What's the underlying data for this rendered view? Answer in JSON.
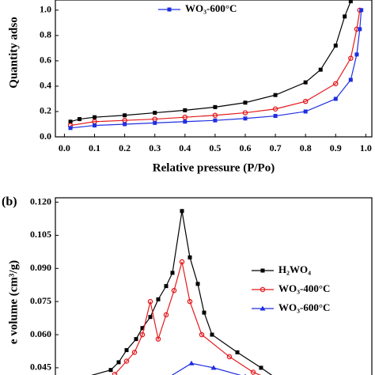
{
  "chart_data": [
    {
      "type": "line",
      "ylabel": "Quantity adso",
      "xlabel": "Relative pressure (P/Po)",
      "xlim": [
        -0.03,
        1.02
      ],
      "ylim": [
        0,
        1.08
      ],
      "xticks": [
        {
          "value": 0,
          "label": "0.0"
        },
        0.1,
        0.2,
        0.3,
        0.4,
        0.5,
        0.6,
        0.7,
        0.8,
        0.9,
        {
          "value": 1,
          "label": "1.0"
        }
      ],
      "yticks": [
        {
          "value": 0,
          "label": "0.0"
        },
        0.2,
        0.4,
        0.6,
        0.8,
        {
          "value": 1,
          "label": "1.0"
        }
      ],
      "series": [
        {
          "color": "#000000",
          "marker": "square",
          "x": [
            0.02,
            0.05,
            0.1,
            0.2,
            0.3,
            0.4,
            0.5,
            0.6,
            0.7,
            0.8,
            0.85,
            0.9,
            0.93,
            0.95
          ],
          "values": [
            0.12,
            0.14,
            0.155,
            0.17,
            0.19,
            0.21,
            0.235,
            0.27,
            0.33,
            0.43,
            0.53,
            0.72,
            0.95,
            1.07
          ]
        },
        {
          "color": "#e41a1c",
          "marker": "circle",
          "x": [
            0.02,
            0.1,
            0.2,
            0.3,
            0.4,
            0.5,
            0.6,
            0.7,
            0.8,
            0.9,
            0.95,
            0.97,
            0.98
          ],
          "values": [
            0.09,
            0.12,
            0.13,
            0.14,
            0.155,
            0.17,
            0.19,
            0.22,
            0.28,
            0.42,
            0.62,
            0.85,
            1.0
          ]
        },
        {
          "name": "WO₃-600°C",
          "color": "#1f2ee0",
          "marker": "square",
          "x": [
            0.02,
            0.1,
            0.2,
            0.3,
            0.4,
            0.5,
            0.6,
            0.7,
            0.8,
            0.9,
            0.95,
            0.97,
            0.98,
            0.985
          ],
          "values": [
            0.07,
            0.09,
            0.1,
            0.11,
            0.12,
            0.13,
            0.145,
            0.165,
            0.2,
            0.3,
            0.45,
            0.65,
            0.85,
            1.0
          ]
        }
      ]
    },
    {
      "type": "line",
      "annotation": "(b)",
      "ylabel": "e volume (cm³/g)",
      "xlim": [
        0,
        40
      ],
      "ylim": [
        0.036,
        0.122
      ],
      "yticks": [
        0.045,
        {
          "value": 0.06,
          "label": "0.060"
        },
        0.075,
        {
          "value": 0.09,
          "label": "0.090"
        },
        0.105,
        {
          "value": 0.12,
          "label": "0.120"
        }
      ],
      "series": [
        {
          "name": "H₂WO₄",
          "color": "#000000",
          "marker": "square",
          "x": [
            3,
            7,
            8,
            9,
            10.2,
            11,
            12,
            13,
            14,
            14.8,
            16,
            17,
            18,
            18.8,
            19.8,
            23,
            26,
            28
          ],
          "values": [
            0.04,
            0.044,
            0.0475,
            0.053,
            0.058,
            0.063,
            0.068,
            0.076,
            0.082,
            0.088,
            0.116,
            0.095,
            0.083,
            0.07,
            0.06,
            0.052,
            0.045,
            0.04
          ]
        },
        {
          "name": "WO₃-400°C",
          "color": "#e41a1c",
          "marker": "circle",
          "x": [
            7.5,
            9,
            10,
            11,
            12,
            13,
            14,
            15,
            16,
            17,
            18.5,
            22,
            25,
            27
          ],
          "values": [
            0.042,
            0.048,
            0.052,
            0.06,
            0.075,
            0.058,
            0.069,
            0.08,
            0.093,
            0.075,
            0.06,
            0.05,
            0.043,
            0.04
          ]
        },
        {
          "name": "WO₃-600°C",
          "color": "#1f2ee0",
          "marker": "triangle",
          "x": [
            14,
            17.2,
            20,
            24
          ],
          "values": [
            0.04,
            0.047,
            0.045,
            0.041
          ]
        }
      ]
    }
  ]
}
